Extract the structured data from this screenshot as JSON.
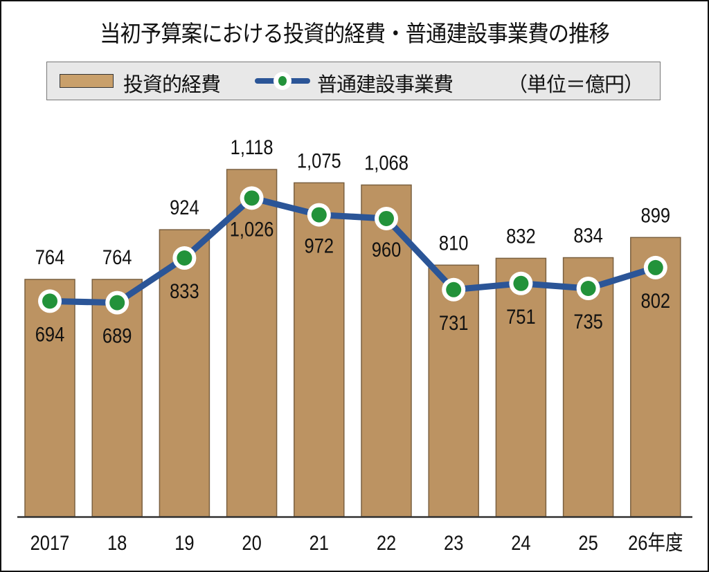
{
  "chart_data": {
    "type": "bar+line",
    "title": "当初予算案における投資的経費・普通建設事業費の推移",
    "unit_note": "（単位＝億円）",
    "categories": [
      "2017",
      "18",
      "19",
      "20",
      "21",
      "22",
      "23",
      "24",
      "25",
      "26年度"
    ],
    "series": [
      {
        "name": "投資的経費",
        "type": "bar",
        "color": "#bc9362",
        "values": [
          764,
          764,
          924,
          1118,
          1075,
          1068,
          810,
          832,
          834,
          899
        ],
        "labels": [
          "764",
          "764",
          "924",
          "1,118",
          "1,075",
          "1,068",
          "810",
          "832",
          "834",
          "899"
        ]
      },
      {
        "name": "普通建設事業費",
        "type": "line",
        "color": "#2b5597",
        "marker_color": "#22923a",
        "values": [
          694,
          689,
          833,
          1026,
          972,
          960,
          731,
          751,
          735,
          802
        ],
        "labels": [
          "694",
          "689",
          "833",
          "1,026",
          "972",
          "960",
          "731",
          "751",
          "735",
          "802"
        ]
      }
    ],
    "xlabel": "",
    "ylabel": "",
    "ylim": [
      0,
      1300
    ],
    "grid": false,
    "legend": "top"
  }
}
